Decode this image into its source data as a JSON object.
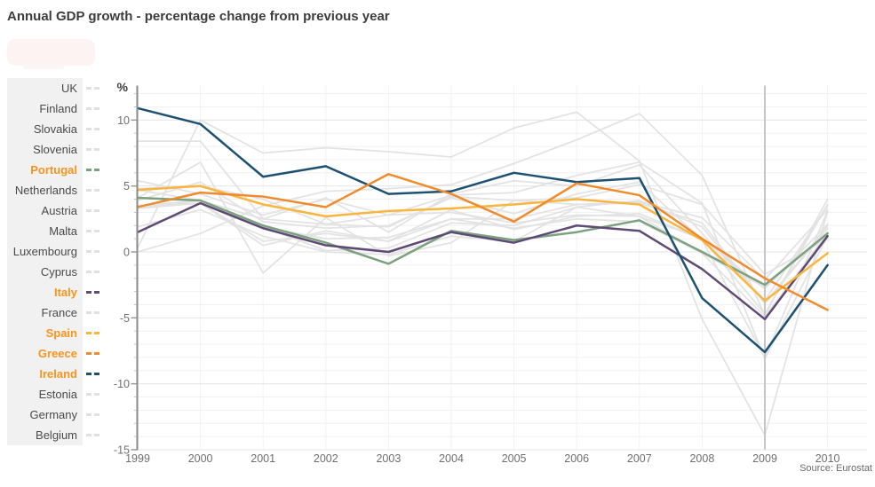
{
  "title": "Annual GDP growth - percentage change from previous year",
  "legend": {
    "items": [
      {
        "label": "UK",
        "highlighted": false
      },
      {
        "label": "Finland",
        "highlighted": false
      },
      {
        "label": "Slovakia",
        "highlighted": false
      },
      {
        "label": "Slovenia",
        "highlighted": false
      },
      {
        "label": "Portugal",
        "highlighted": true
      },
      {
        "label": "Netherlands",
        "highlighted": false
      },
      {
        "label": "Austria",
        "highlighted": false
      },
      {
        "label": "Malta",
        "highlighted": false
      },
      {
        "label": "Luxembourg",
        "highlighted": false
      },
      {
        "label": "Cyprus",
        "highlighted": false
      },
      {
        "label": "Italy",
        "highlighted": true
      },
      {
        "label": "France",
        "highlighted": false
      },
      {
        "label": "Spain",
        "highlighted": true
      },
      {
        "label": "Greece",
        "highlighted": true
      },
      {
        "label": "Ireland",
        "highlighted": true
      },
      {
        "label": "Estonia",
        "highlighted": false
      },
      {
        "label": "Germany",
        "highlighted": false
      },
      {
        "label": "Belgium",
        "highlighted": false
      }
    ],
    "highlight_text_color": "#f7941d",
    "muted_swatch_color": "#e0e0e0"
  },
  "chart_data": {
    "type": "line",
    "x": [
      "1999",
      "2000",
      "2001",
      "2002",
      "2003",
      "2004",
      "2005",
      "2006",
      "2007",
      "2008",
      "2009",
      "2010"
    ],
    "unit_label": "%",
    "y_ticks": [
      10,
      5,
      0,
      -5,
      -10,
      -15
    ],
    "ylim": [
      -15,
      12.5
    ],
    "grid": true,
    "legend_position": "left",
    "highlight_year": "2009",
    "source": "Source: Eurostat",
    "muted_line_color": "#e2e2e2",
    "series": [
      {
        "name": "Ireland",
        "highlighted": true,
        "color": "#1d5172",
        "values": [
          10.9,
          9.7,
          5.7,
          6.5,
          4.4,
          4.6,
          6.0,
          5.3,
          5.6,
          -3.5,
          -7.6,
          -1.0
        ]
      },
      {
        "name": "Greece",
        "highlighted": true,
        "color": "#ef8b2c",
        "values": [
          3.4,
          4.5,
          4.2,
          3.4,
          5.9,
          4.4,
          2.3,
          5.2,
          4.3,
          1.0,
          -2.0,
          -4.4
        ]
      },
      {
        "name": "Spain",
        "highlighted": true,
        "color": "#f9b53d",
        "values": [
          4.7,
          5.0,
          3.6,
          2.7,
          3.1,
          3.3,
          3.6,
          4.0,
          3.6,
          0.9,
          -3.7,
          -0.1
        ]
      },
      {
        "name": "Portugal",
        "highlighted": true,
        "color": "#7ca17e",
        "values": [
          4.1,
          3.9,
          2.0,
          0.7,
          -0.9,
          1.6,
          0.9,
          1.5,
          2.4,
          0.0,
          -2.5,
          1.4
        ]
      },
      {
        "name": "Italy",
        "highlighted": true,
        "color": "#5e4a75",
        "values": [
          1.5,
          3.7,
          1.8,
          0.5,
          0.0,
          1.5,
          0.7,
          2.0,
          1.6,
          -1.3,
          -5.1,
          1.2
        ]
      },
      {
        "name": "UK",
        "highlighted": false,
        "color": "#e2e2e2",
        "values": [
          3.5,
          3.9,
          2.5,
          2.1,
          2.8,
          3.0,
          2.2,
          2.8,
          2.7,
          -0.1,
          -4.9,
          1.4
        ]
      },
      {
        "name": "Finland",
        "highlighted": false,
        "color": "#e2e2e2",
        "values": [
          3.9,
          5.3,
          2.3,
          1.8,
          2.0,
          4.1,
          2.9,
          4.4,
          5.3,
          0.9,
          -8.0,
          3.1
        ]
      },
      {
        "name": "Slovakia",
        "highlighted": false,
        "color": "#e2e2e2",
        "values": [
          0.0,
          1.4,
          3.5,
          4.6,
          4.8,
          5.1,
          6.7,
          8.5,
          10.5,
          5.8,
          -4.8,
          4.0
        ]
      },
      {
        "name": "Slovenia",
        "highlighted": false,
        "color": "#e2e2e2",
        "values": [
          5.4,
          4.4,
          2.8,
          4.0,
          2.8,
          4.3,
          4.5,
          5.8,
          6.8,
          3.7,
          -8.1,
          1.2
        ]
      },
      {
        "name": "Netherlands",
        "highlighted": false,
        "color": "#e2e2e2",
        "values": [
          4.7,
          3.9,
          1.9,
          0.1,
          0.3,
          2.2,
          2.0,
          3.4,
          3.9,
          1.9,
          -3.9,
          1.8
        ]
      },
      {
        "name": "Austria",
        "highlighted": false,
        "color": "#e2e2e2",
        "values": [
          3.3,
          3.7,
          0.5,
          1.6,
          0.8,
          2.5,
          2.5,
          3.6,
          3.7,
          2.2,
          -3.9,
          2.0
        ]
      },
      {
        "name": "Malta",
        "highlighted": false,
        "color": "#e2e2e2",
        "values": [
          4.1,
          6.8,
          -1.6,
          2.6,
          -0.3,
          0.7,
          3.9,
          3.6,
          3.8,
          2.6,
          -2.1,
          3.2
        ]
      },
      {
        "name": "Luxembourg",
        "highlighted": false,
        "color": "#e2e2e2",
        "values": [
          8.4,
          8.4,
          2.5,
          4.1,
          1.5,
          4.4,
          5.4,
          5.0,
          6.6,
          1.4,
          -3.7,
          3.5
        ]
      },
      {
        "name": "Cyprus",
        "highlighted": false,
        "color": "#e2e2e2",
        "values": [
          4.8,
          5.0,
          4.0,
          2.1,
          1.9,
          4.2,
          3.9,
          4.1,
          5.1,
          3.6,
          -1.7,
          1.0
        ]
      },
      {
        "name": "France",
        "highlighted": false,
        "color": "#e2e2e2",
        "values": [
          3.3,
          3.9,
          1.9,
          1.0,
          1.1,
          2.5,
          1.8,
          2.5,
          2.3,
          -0.1,
          -2.7,
          1.5
        ]
      },
      {
        "name": "Estonia",
        "highlighted": false,
        "color": "#e2e2e2",
        "values": [
          0.3,
          10.0,
          7.5,
          7.9,
          7.6,
          7.2,
          9.4,
          10.6,
          6.9,
          -5.1,
          -13.9,
          3.1
        ]
      },
      {
        "name": "Germany",
        "highlighted": false,
        "color": "#e2e2e2",
        "values": [
          1.9,
          3.2,
          1.2,
          0.0,
          -0.2,
          1.2,
          0.8,
          3.4,
          2.7,
          1.0,
          -4.7,
          3.6
        ]
      },
      {
        "name": "Belgium",
        "highlighted": false,
        "color": "#e2e2e2",
        "values": [
          3.5,
          3.7,
          0.8,
          1.4,
          0.8,
          3.2,
          1.7,
          2.7,
          2.9,
          1.0,
          -2.8,
          2.1
        ]
      }
    ]
  }
}
